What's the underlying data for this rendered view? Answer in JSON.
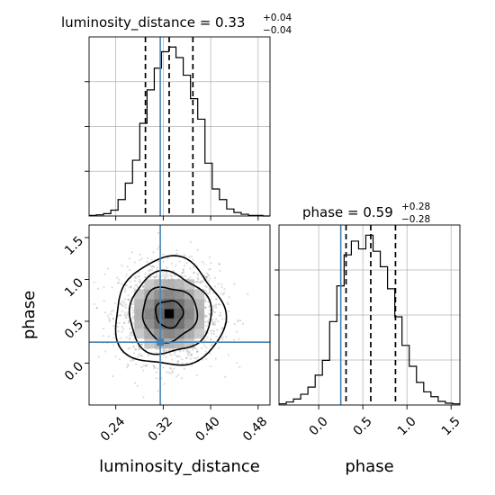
{
  "chart_data": {
    "type": "corner",
    "parameters": [
      "luminosity_distance",
      "phase"
    ],
    "truths": {
      "luminosity_distance": 0.315,
      "phase": 0.25
    },
    "panels": [
      {
        "panel": "histogram",
        "parameter": "luminosity_distance",
        "title": {
          "main": "luminosity_distance = 0.33",
          "sup": "+0.04",
          "sub": "−0.04"
        },
        "xlim": [
          0.195,
          0.5
        ],
        "bins": [
          0.195,
          0.20721,
          0.21942,
          0.23163,
          0.24384,
          0.25605,
          0.26826,
          0.28047,
          0.29268,
          0.30489,
          0.3171,
          0.32931,
          0.34152,
          0.35373,
          0.36594,
          0.37815,
          0.39036,
          0.40257,
          0.41478,
          0.42699,
          0.4392,
          0.45141,
          0.46362,
          0.47583,
          0.48804,
          0.5
        ],
        "counts": [
          1,
          2,
          4,
          10,
          28,
          56,
          95,
          158,
          215,
          252,
          280,
          288,
          270,
          240,
          200,
          165,
          90,
          46,
          28,
          12,
          6,
          3,
          1,
          1,
          0
        ],
        "quantiles": [
          0.29,
          0.33,
          0.37
        ]
      },
      {
        "panel": "histogram",
        "parameter": "phase",
        "title": {
          "main": "phase = 0.59",
          "sup": "+0.28",
          "sub": "−0.28"
        },
        "xlim": [
          -0.45,
          1.6
        ],
        "xticks": [
          "0.0",
          "0.5",
          "1.0",
          "1.5"
        ],
        "bins": [
          -0.45,
          -0.368,
          -0.286,
          -0.204,
          -0.122,
          -0.04,
          0.042,
          0.124,
          0.206,
          0.288,
          0.37,
          0.452,
          0.534,
          0.616,
          0.698,
          0.78,
          0.862,
          0.944,
          1.026,
          1.108,
          1.19,
          1.272,
          1.354,
          1.436,
          1.518,
          1.6
        ],
        "counts": [
          2,
          5,
          10,
          18,
          30,
          50,
          75,
          140,
          200,
          252,
          275,
          262,
          285,
          258,
          232,
          195,
          148,
          100,
          65,
          38,
          22,
          14,
          6,
          3,
          2
        ],
        "quantiles": [
          0.31,
          0.59,
          0.87
        ]
      },
      {
        "panel": "2d-density",
        "x": "luminosity_distance",
        "y": "phase",
        "xlim": [
          0.195,
          0.5
        ],
        "ylim": [
          -0.5,
          1.65
        ],
        "xticks": [
          "0.24",
          "0.32",
          "0.40",
          "0.48"
        ],
        "yticks": [
          "0.0",
          "0.5",
          "1.0",
          "1.5"
        ],
        "xlabel": "luminosity_distance",
        "ylabel": "phase",
        "center": [
          0.33,
          0.59
        ],
        "sigma": [
          0.04,
          0.28
        ],
        "contour_levels_sigma": [
          0.5,
          1.0,
          1.5,
          2.0
        ]
      }
    ]
  }
}
